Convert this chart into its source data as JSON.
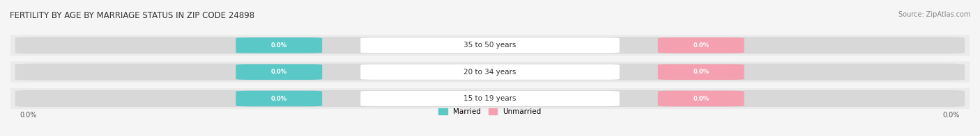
{
  "title": "FERTILITY BY AGE BY MARRIAGE STATUS IN ZIP CODE 24898",
  "source": "Source: ZipAtlas.com",
  "categories": [
    "15 to 19 years",
    "20 to 34 years",
    "35 to 50 years"
  ],
  "married_values": [
    0.0,
    0.0,
    0.0
  ],
  "unmarried_values": [
    0.0,
    0.0,
    0.0
  ],
  "married_color": "#5bc8c8",
  "unmarried_color": "#f4a0b0",
  "bar_bg_color": "#e8e8e8",
  "row_bg_colors": [
    "#f0f0f0",
    "#e8e8e8",
    "#f0f0f0"
  ],
  "label_color": "#555555",
  "title_color": "#333333",
  "source_color": "#888888",
  "axis_label_color": "#555555",
  "xlim": [
    -1,
    1
  ],
  "figsize": [
    14.06,
    1.96
  ],
  "dpi": 100
}
